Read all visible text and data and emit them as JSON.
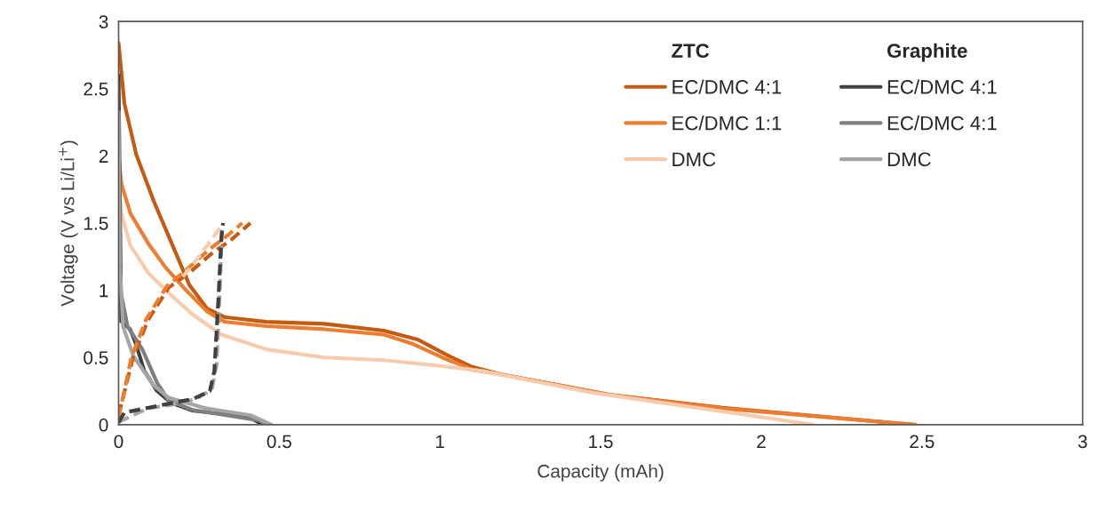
{
  "chart_data": {
    "type": "line",
    "xlabel": "Capacity (mAh)",
    "ylabel": "Voltage (V vs Li/Li$^{+}$)",
    "xlim": [
      0,
      3
    ],
    "ylim": [
      0,
      3
    ],
    "xticks": [
      0,
      0.5,
      1,
      1.5,
      2,
      2.5,
      3
    ],
    "yticks": [
      0,
      0.5,
      1,
      1.5,
      2,
      2.5,
      3
    ],
    "grid": false,
    "legend": "top right",
    "marker": "none",
    "annotations": [
      "ZTC",
      "Graphite"
    ],
    "series": [
      {
        "name": "EC/DMC 4:1",
        "color": "#c55a11",
        "line_style": "solid",
        "x": [
          0,
          0.018,
          0.055,
          0.11,
          0.165,
          0.22,
          0.275,
          0.33,
          0.46,
          0.64,
          0.825,
          0.93,
          1.02,
          1.1,
          1.19,
          1.53,
          1.88,
          2.47
        ],
        "values": [
          2.84,
          2.39,
          2.01,
          1.66,
          1.35,
          1.04,
          0.865,
          0.8,
          0.765,
          0.75,
          0.7,
          0.634,
          0.52,
          0.43,
          0.374,
          0.222,
          0.126,
          0
        ]
      },
      {
        "name": "EC/DMC 1:1",
        "color": "#ed7d31",
        "line_style": "solid",
        "x": [
          0,
          0.009,
          0.037,
          0.092,
          0.146,
          0.21,
          0.275,
          0.33,
          0.46,
          0.64,
          0.825,
          0.916,
          1.007,
          1.1,
          1.19,
          1.53,
          1.88,
          2.48
        ],
        "values": [
          2.0,
          1.79,
          1.57,
          1.35,
          1.17,
          1.0,
          0.843,
          0.765,
          0.733,
          0.71,
          0.67,
          0.6,
          0.5,
          0.41,
          0.374,
          0.222,
          0.12,
          0
        ]
      },
      {
        "name": "DMC",
        "color": "#f8cbad",
        "line_style": "solid",
        "x": [
          0,
          0.009,
          0.037,
          0.092,
          0.156,
          0.23,
          0.32,
          0.46,
          0.64,
          0.825,
          1.007,
          1.13,
          1.48,
          1.88,
          2.16
        ],
        "values": [
          1.8,
          1.57,
          1.33,
          1.13,
          0.98,
          0.82,
          0.67,
          0.56,
          0.5,
          0.48,
          0.435,
          0.4,
          0.236,
          0.098,
          0
        ]
      },
      {
        "name": "EC/DMC 4:1",
        "color": "#404040",
        "line_style": "solid",
        "x": [
          0,
          0.008,
          0.036,
          0.054,
          0.08,
          0.12,
          0.165,
          0.23,
          0.32,
          0.41,
          0.449
        ],
        "values": [
          2.6,
          0.77,
          0.71,
          0.6,
          0.4,
          0.25,
          0.16,
          0.105,
          0.08,
          0.05,
          0
        ]
      },
      {
        "name": "EC/DMC 4:1",
        "color": "#7f7f7f",
        "line_style": "solid",
        "x": [
          0,
          0.028,
          0.074,
          0.12,
          0.156,
          0.23,
          0.44,
          0.458
        ],
        "values": [
          1.07,
          0.73,
          0.56,
          0.31,
          0.18,
          0.11,
          0.03,
          0
        ]
      },
      {
        "name": "DMC",
        "color": "#a5a5a5",
        "line_style": "solid",
        "x": [
          0,
          0.004,
          0.014,
          0.046,
          0.11,
          0.156,
          0.275,
          0.41,
          0.476
        ],
        "values": [
          2.33,
          1.18,
          0.73,
          0.51,
          0.29,
          0.2,
          0.12,
          0.07,
          0
        ]
      },
      {
        "color": "#c55a11",
        "line_style": "dashed",
        "x": [
          0,
          0.046,
          0.092,
          0.156,
          0.22,
          0.293,
          0.348,
          0.41
        ],
        "values": [
          0.07,
          0.51,
          0.78,
          1.02,
          1.13,
          1.28,
          1.37,
          1.5
        ]
      },
      {
        "color": "#ed7d31",
        "line_style": "dashed",
        "x": [
          0,
          0.04,
          0.085,
          0.15,
          0.21,
          0.28,
          0.33,
          0.385
        ],
        "values": [
          0.05,
          0.5,
          0.78,
          1.03,
          1.15,
          1.3,
          1.39,
          1.5
        ]
      },
      {
        "color": "#f8cbad",
        "line_style": "dashed",
        "x": [
          0.2,
          0.25,
          0.29,
          0.32
        ],
        "values": [
          1.1,
          1.25,
          1.38,
          1.48
        ]
      },
      {
        "color": "#a5a5a5",
        "line_style": "dashed",
        "x": [
          0,
          0.09,
          0.17,
          0.24,
          0.29,
          0.305,
          0.315,
          0.322
        ],
        "values": [
          0.02,
          0.12,
          0.15,
          0.19,
          0.26,
          0.45,
          1.0,
          1.45
        ]
      },
      {
        "color": "#404040",
        "line_style": "dashed",
        "x": [
          0,
          0.018,
          0.09,
          0.165,
          0.23,
          0.284,
          0.298,
          0.311,
          0.32,
          0.325
        ],
        "values": [
          0.015,
          0.09,
          0.125,
          0.16,
          0.19,
          0.25,
          0.4,
          0.95,
          1.4,
          1.5
        ]
      }
    ]
  }
}
